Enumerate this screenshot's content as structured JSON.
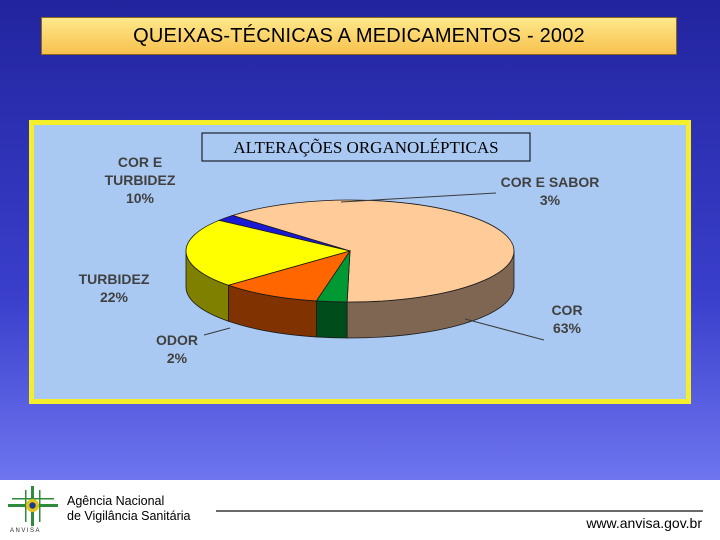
{
  "title": "QUEIXAS-TÉCNICAS A MEDICAMENTOS - 2002",
  "chart_data": {
    "type": "pie",
    "title": "ALTERAÇÕES ORGANOLÉPTICAS",
    "slices": [
      {
        "label": "COR",
        "value": 63,
        "display": "63%",
        "color": "#ffcc99",
        "side_color": "#7f6653"
      },
      {
        "label": "ODOR",
        "value": 2,
        "display": "2%",
        "color": "#1a1ad6",
        "side_color": "#0c0c70"
      },
      {
        "label": "TURBIDEZ",
        "value": 22,
        "display": "22%",
        "color": "#ffff00",
        "side_color": "#7f7f00"
      },
      {
        "label": "COR E TURBIDEZ",
        "value": 10,
        "display": "10%",
        "color": "#ff6600",
        "side_color": "#803300"
      },
      {
        "label": "COR E SABOR",
        "value": 3,
        "display": "3%",
        "color": "#009933",
        "side_color": "#004c1a"
      }
    ]
  },
  "footer": {
    "agency_line1": "Agência Nacional",
    "agency_line2": "de Vigilância Sanitária",
    "logo_caption": "ANVISA",
    "website": "www.anvisa.gov.br"
  }
}
